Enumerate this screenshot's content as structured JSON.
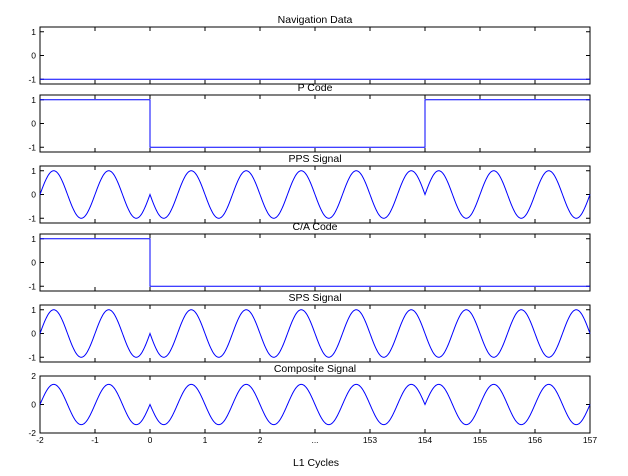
{
  "chart_data": {
    "type": "line",
    "xlabel": "L1 Cycles",
    "x_ticks": [
      "-2",
      "-1",
      "0",
      "1",
      "2",
      "...",
      "153",
      "154",
      "155",
      "156",
      "157"
    ],
    "x_range": [
      -2,
      157
    ],
    "subplots": [
      {
        "title": "Navigation Data",
        "ylim": [
          -1.2,
          1.2
        ],
        "yticks": [
          "1",
          "0",
          "-1"
        ],
        "kind": "constant",
        "value": -1
      },
      {
        "title": "P Code",
        "ylim": [
          -1.2,
          1.2
        ],
        "yticks": [
          "1",
          "0",
          "-1"
        ],
        "kind": "step",
        "segments": [
          {
            "from": -2,
            "to": 0,
            "value": 1
          },
          {
            "from": 0,
            "to": 154,
            "value": -1
          },
          {
            "from": 154,
            "to": 157,
            "value": 1
          }
        ]
      },
      {
        "title": "PPS Signal",
        "ylim": [
          -1.2,
          1.2
        ],
        "yticks": [
          "1",
          "0",
          "-1"
        ],
        "kind": "wave",
        "amplitude": 1,
        "phase_flips_at": [
          0,
          154
        ]
      },
      {
        "title": "C/A Code",
        "ylim": [
          -1.2,
          1.2
        ],
        "yticks": [
          "1",
          "0",
          "-1"
        ],
        "kind": "step",
        "segments": [
          {
            "from": -2,
            "to": 0,
            "value": 1
          },
          {
            "from": 0,
            "to": 157,
            "value": -1
          }
        ]
      },
      {
        "title": "SPS Signal",
        "ylim": [
          -1.2,
          1.2
        ],
        "yticks": [
          "1",
          "0",
          "-1"
        ],
        "kind": "wave",
        "amplitude": 1,
        "phase_flips_at": [
          0
        ]
      },
      {
        "title": "Composite Signal",
        "ylim": [
          -2,
          2
        ],
        "yticks": [
          "2",
          "0",
          "-2"
        ],
        "kind": "wave",
        "amplitude": 1.414,
        "phase_flips_at": [
          0,
          154
        ]
      }
    ],
    "series_color": "#0000ff"
  }
}
